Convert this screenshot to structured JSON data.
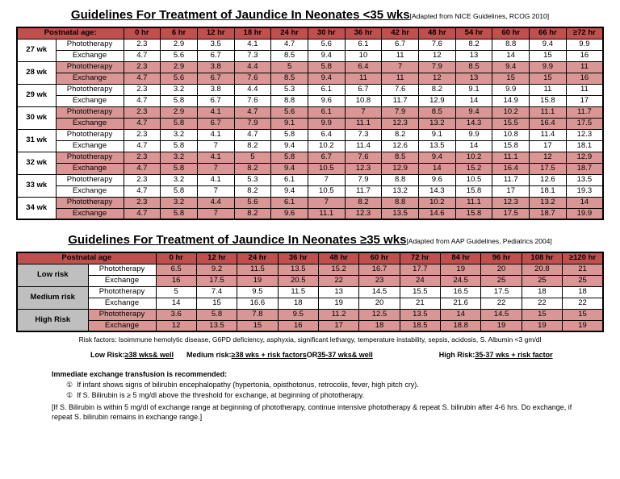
{
  "colors": {
    "header_red": "#c0504d",
    "row_pink": "#d99694",
    "label_gray": "#bfbfbf"
  },
  "table1": {
    "title": "Guidelines For Treatment of Jaundice In Neonates <35 wks",
    "title_note": "[Adapted from NICE Guidelines, RCOG 2010]",
    "header_label": "Postnatal age:",
    "hours": [
      "0 hr",
      "6 hr",
      "12 hr",
      "18 hr",
      "24 hr",
      "30 hr",
      "36 hr",
      "42 hr",
      "48 hr",
      "54 hr",
      "60 hr",
      "66 hr",
      "≥72 hr"
    ],
    "phototherapy_label": "Phototherapy",
    "exchange_label": "Exchange",
    "groups": [
      {
        "week": "27 wk",
        "shaded": false,
        "phototherapy": [
          2.3,
          2.9,
          3.5,
          4.1,
          4.7,
          5.6,
          6.1,
          6.7,
          7.6,
          8.2,
          8.8,
          9.4,
          9.9
        ],
        "exchange": [
          4.7,
          5.6,
          6.7,
          7.3,
          8.5,
          9.4,
          10,
          11,
          12,
          13,
          14,
          15,
          16
        ]
      },
      {
        "week": "28 wk",
        "shaded": true,
        "phototherapy": [
          2.3,
          2.9,
          3.8,
          4.4,
          5,
          5.8,
          6.4,
          7,
          7.9,
          8.5,
          9.4,
          9.9,
          11
        ],
        "exchange": [
          4.7,
          5.6,
          6.7,
          7.6,
          8.5,
          9.4,
          11,
          11,
          12,
          13,
          15,
          15,
          16
        ]
      },
      {
        "week": "29 wk",
        "shaded": false,
        "phototherapy": [
          2.3,
          3.2,
          3.8,
          4.4,
          5.3,
          6.1,
          6.7,
          7.6,
          8.2,
          9.1,
          9.9,
          11,
          11
        ],
        "exchange": [
          4.7,
          5.8,
          6.7,
          7.6,
          8.8,
          9.6,
          10.8,
          11.7,
          12.9,
          14,
          14.9,
          15.8,
          17
        ]
      },
      {
        "week": "30 wk",
        "shaded": true,
        "phototherapy": [
          2.3,
          2.9,
          4.1,
          4.7,
          5.6,
          6.1,
          7,
          7.9,
          8.5,
          9.4,
          10.2,
          11.1,
          11.7
        ],
        "exchange": [
          4.7,
          5.8,
          6.7,
          7.9,
          9.1,
          9.9,
          11.1,
          12.3,
          13.2,
          14.3,
          15.5,
          16.4,
          17.5
        ]
      },
      {
        "week": "31 wk",
        "shaded": false,
        "phototherapy": [
          2.3,
          3.2,
          4.1,
          4.7,
          5.8,
          6.4,
          7.3,
          8.2,
          9.1,
          9.9,
          10.8,
          11.4,
          12.3
        ],
        "exchange": [
          4.7,
          5.8,
          7,
          8.2,
          9.4,
          10.2,
          11.4,
          12.6,
          13.5,
          14,
          15.8,
          17,
          18.1
        ]
      },
      {
        "week": "32 wk",
        "shaded": true,
        "phototherapy": [
          2.3,
          3.2,
          4.1,
          5,
          5.8,
          6.7,
          7.6,
          8.5,
          9.4,
          10.2,
          11.1,
          12,
          12.9
        ],
        "exchange": [
          4.7,
          5.8,
          7,
          8.2,
          9.4,
          10.5,
          12.3,
          12.9,
          14,
          15.2,
          16.4,
          17.5,
          18.7
        ]
      },
      {
        "week": "33 wk",
        "shaded": false,
        "phototherapy": [
          2.3,
          3.2,
          4.1,
          5.3,
          6.1,
          7,
          7.9,
          8.8,
          9.6,
          10.5,
          11.7,
          12.6,
          13.5
        ],
        "exchange": [
          4.7,
          5.8,
          7,
          8.2,
          9.4,
          10.5,
          11.7,
          13.2,
          14.3,
          15.8,
          17,
          18.1,
          19.3
        ]
      },
      {
        "week": "34 wk",
        "shaded": true,
        "phototherapy": [
          2.3,
          3.2,
          4.4,
          5.6,
          6.1,
          7,
          8.2,
          8.8,
          10.2,
          11.1,
          12.3,
          13.2,
          14
        ],
        "exchange": [
          4.7,
          5.8,
          7,
          8.2,
          9.6,
          11.1,
          12.3,
          13.5,
          14.6,
          15.8,
          17.5,
          18.7,
          19.9
        ]
      }
    ]
  },
  "table2": {
    "title": "Guidelines For Treatment of Jaundice In Neonates ≥35 wks",
    "title_note": "[Adapted from AAP Guidelines, Pediatrics 2004]",
    "header_label": "Postnatal age",
    "hours": [
      "0 hr",
      "12 hr",
      "24 hr",
      "36 hr",
      "48 hr",
      "60 hr",
      "72 hr",
      "84 hr",
      "96 hr",
      "108 hr",
      "≥120 hr"
    ],
    "phototherapy_label": "Phototherapy",
    "exchange_label": "Exchange",
    "groups": [
      {
        "risk": "Low risk",
        "therapy_shaded": false,
        "values_shaded": true,
        "phototherapy": [
          6.5,
          9.2,
          11.5,
          13.5,
          15.2,
          16.7,
          17.7,
          19,
          20,
          20.8,
          21
        ],
        "exchange": [
          16,
          17.5,
          19,
          20.5,
          22,
          23,
          24,
          24.5,
          25,
          25,
          25
        ]
      },
      {
        "risk": "Medium risk",
        "therapy_shaded": false,
        "values_shaded": false,
        "phototherapy": [
          5,
          7.4,
          9.5,
          11.5,
          13,
          14.5,
          15.5,
          16.5,
          17.5,
          18,
          18
        ],
        "exchange": [
          14,
          15,
          16.6,
          18,
          19,
          20,
          21,
          21.6,
          22,
          22,
          22
        ]
      },
      {
        "risk": "High Risk",
        "therapy_shaded": true,
        "values_shaded": true,
        "phototherapy": [
          3.6,
          5.8,
          7.8,
          9.5,
          11.2,
          12.5,
          13.5,
          14,
          14.5,
          15,
          15
        ],
        "exchange": [
          12,
          13.5,
          15,
          16,
          17,
          18,
          18.5,
          18.8,
          19,
          19,
          19
        ]
      }
    ]
  },
  "notes": {
    "risk_factors": "Risk factors: Isoimmune hemolytic disease, G6PD deficiency, asphyxia, significant lethargy, temperature instability, sepsis, acidosis, S. Albumin <3 gm/dl",
    "risk_line": {
      "low_label": "Low Risk:",
      "low_value": "≥38 wks& well",
      "medium_label": "Medium risk:",
      "medium_value": "≥38 wks + risk factors",
      "or": "OR",
      "medium_value2": "35-37 wks& well",
      "high_label": "High Risk:",
      "high_value": "35-37 wks + risk factor"
    },
    "immediate_title": "Immediate exchange transfusion is recommended:",
    "bullet_icon": "①",
    "bullets": [
      "If infant shows signs of bilirubin encephalopathy (hypertonia, opisthotonus, retrocolis, fever, high pitch cry).",
      "If S. Bilirubin is ≥ 5 mg/dl above the threshold for exchange, at beginning of phototherapy."
    ],
    "bracket_note": "[If S. Bilirubin is within 5 mg/dl of exchange range at beginning of phototherapy, continue intensive phototherapy & repeat S. bilirubin after 4-6 hrs. Do exchange, if repeat S. bilirubin remains in exchange range.]"
  }
}
